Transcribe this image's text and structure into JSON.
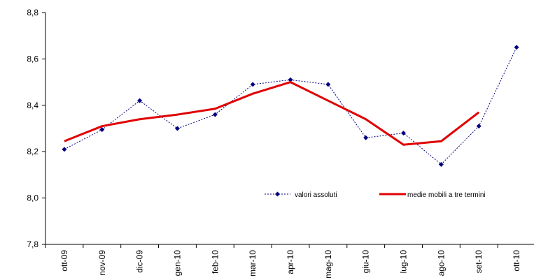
{
  "chart_data": {
    "type": "line",
    "categories": [
      "ott-09",
      "nov-09",
      "dic-09",
      "gen-10",
      "feb-10",
      "mar-10",
      "apr-10",
      "mag-10",
      "giu-10",
      "lug-10",
      "ago-10",
      "set-10",
      "ott-10"
    ],
    "series": [
      {
        "name": "valori assoluti",
        "style": "dotted-with-diamond-markers",
        "color": "#000080",
        "values": [
          8.21,
          8.295,
          8.42,
          8.3,
          8.36,
          8.49,
          8.51,
          8.49,
          8.26,
          8.28,
          8.145,
          8.31,
          8.65
        ]
      },
      {
        "name": "medie mobili a tre termini",
        "style": "solid-thick",
        "color": "#e00000",
        "values": [
          8.245,
          8.31,
          8.34,
          8.36,
          8.385,
          8.45,
          8.5,
          8.42,
          8.34,
          8.23,
          8.245,
          8.37,
          null
        ]
      }
    ],
    "y_ticks": [
      "8,8",
      "8,6",
      "8,4",
      "8,2",
      "8,0",
      "7,8"
    ],
    "ylim": [
      7.8,
      8.8
    ],
    "grid": false,
    "legend_position": "inside-lower-right"
  }
}
